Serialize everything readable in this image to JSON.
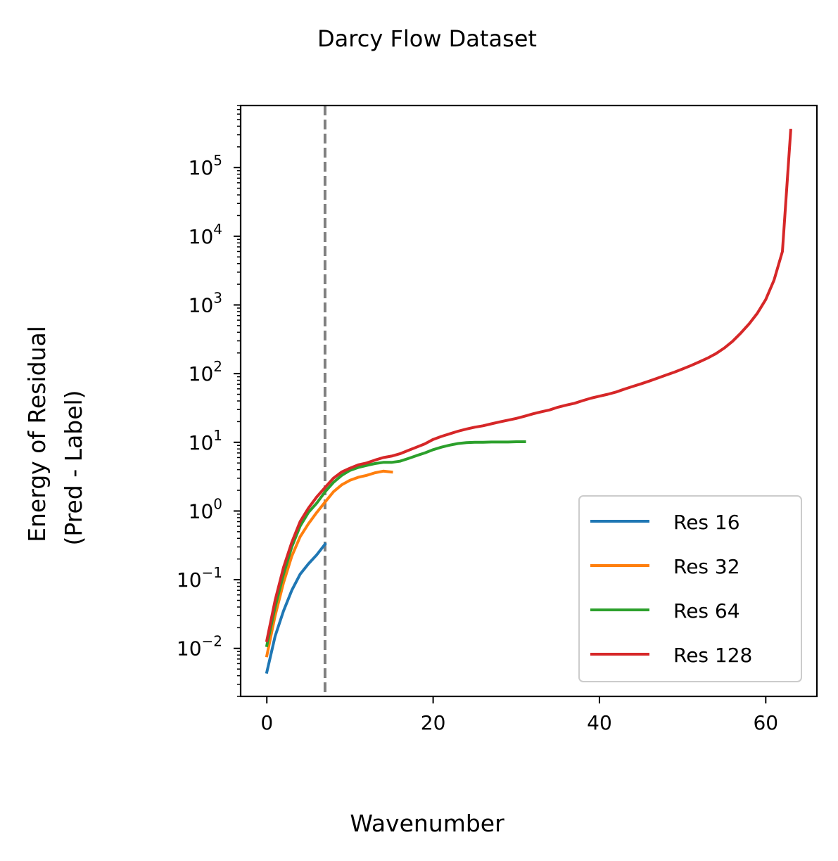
{
  "chart_data": {
    "type": "line",
    "title": "Darcy Flow Dataset",
    "xlabel": "Wavenumber",
    "ylabel": [
      "Energy of Residual",
      "(Pred - Label)"
    ],
    "xlim": [
      -3.15,
      66.15
    ],
    "ylim": [
      0.002,
      800000
    ],
    "yscale": "log",
    "xticks": [
      0,
      20,
      40,
      60
    ],
    "xtick_labels": [
      "0",
      "20",
      "40",
      "60"
    ],
    "yticks_exponents": [
      -2,
      -1,
      0,
      1,
      2,
      3,
      4,
      5
    ],
    "ytick_base": "10",
    "ytick_exponent_labels": [
      "−2",
      "−1",
      "0",
      "1",
      "2",
      "3",
      "4",
      "5"
    ],
    "vline": {
      "x": 7,
      "color": "#808080",
      "style": "dashed"
    },
    "grid": false,
    "legend_position": "lower-right",
    "series": [
      {
        "name": "Res 16",
        "color": "#1f77b4",
        "x": [
          0,
          1,
          2,
          3,
          4,
          5,
          6,
          7
        ],
        "y": [
          0.0045,
          0.015,
          0.035,
          0.07,
          0.12,
          0.17,
          0.23,
          0.33
        ]
      },
      {
        "name": "Res 32",
        "color": "#ff7f0e",
        "x": [
          0,
          1,
          2,
          3,
          4,
          5,
          6,
          7,
          8,
          9,
          10,
          11,
          12,
          13,
          14,
          15
        ],
        "y": [
          0.0078,
          0.03,
          0.09,
          0.22,
          0.42,
          0.65,
          0.95,
          1.35,
          1.9,
          2.4,
          2.8,
          3.1,
          3.3,
          3.6,
          3.8,
          3.7
        ]
      },
      {
        "name": "Res 64",
        "color": "#2ca02c",
        "x": [
          0,
          1,
          2,
          3,
          4,
          5,
          6,
          7,
          8,
          9,
          10,
          11,
          12,
          13,
          14,
          15,
          16,
          17,
          18,
          19,
          20,
          21,
          22,
          23,
          24,
          25,
          26,
          27,
          28,
          29,
          30,
          31
        ],
        "y": [
          0.011,
          0.04,
          0.12,
          0.3,
          0.6,
          0.95,
          1.3,
          1.9,
          2.6,
          3.3,
          3.9,
          4.3,
          4.6,
          4.9,
          5.1,
          5.1,
          5.3,
          5.8,
          6.4,
          7.0,
          7.8,
          8.5,
          9.1,
          9.6,
          9.9,
          10.0,
          10.0,
          10.1,
          10.1,
          10.1,
          10.2,
          10.2
        ]
      },
      {
        "name": "Res 128",
        "color": "#d62728",
        "x": [
          0,
          1,
          2,
          3,
          4,
          5,
          6,
          7,
          8,
          9,
          10,
          11,
          12,
          13,
          14,
          15,
          16,
          17,
          18,
          19,
          20,
          21,
          22,
          23,
          24,
          25,
          26,
          27,
          28,
          29,
          30,
          31,
          32,
          33,
          34,
          35,
          36,
          37,
          38,
          39,
          40,
          41,
          42,
          43,
          44,
          45,
          46,
          47,
          48,
          49,
          50,
          51,
          52,
          53,
          54,
          55,
          56,
          57,
          58,
          59,
          60,
          61,
          62,
          63
        ],
        "y": [
          0.013,
          0.05,
          0.15,
          0.35,
          0.7,
          1.1,
          1.6,
          2.2,
          3.0,
          3.7,
          4.2,
          4.7,
          5.0,
          5.5,
          6.0,
          6.3,
          6.8,
          7.6,
          8.5,
          9.5,
          11.0,
          12.2,
          13.3,
          14.5,
          15.6,
          16.6,
          17.4,
          18.6,
          19.8,
          21.0,
          22.3,
          24.0,
          26.0,
          27.8,
          29.6,
          32.4,
          34.8,
          37.0,
          40.5,
          44.0,
          47.0,
          50.0,
          54.0,
          59.5,
          65.0,
          71.0,
          78.0,
          86.0,
          95.0,
          105.0,
          117.0,
          131.0,
          148.0,
          168.0,
          195.0,
          235.0,
          295.0,
          390.0,
          530.0,
          760.0,
          1200.0,
          2300.0,
          6000.0,
          350000.0
        ]
      }
    ]
  }
}
